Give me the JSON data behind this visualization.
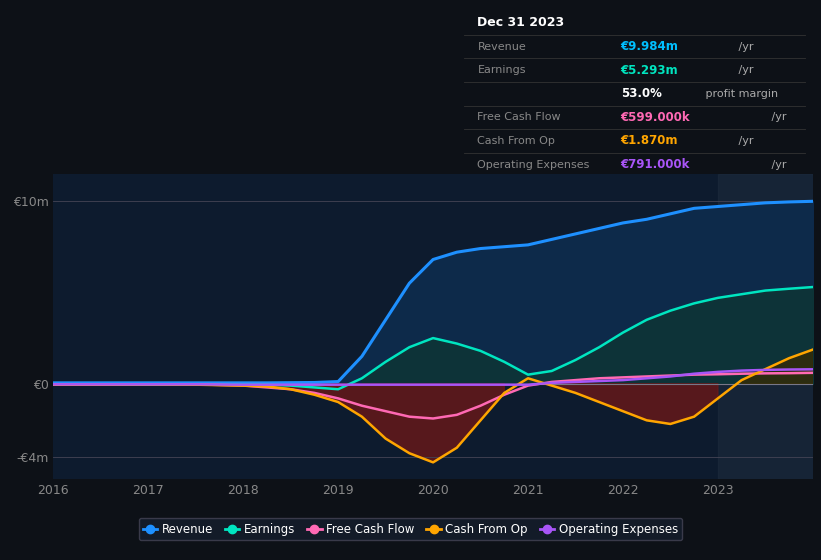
{
  "bg_color": "#0d1117",
  "plot_bg_color": "#0d1b2e",
  "years": [
    2016,
    2016.5,
    2017,
    2017.5,
    2018,
    2018.25,
    2018.5,
    2018.75,
    2019,
    2019.25,
    2019.5,
    2019.75,
    2020,
    2020.25,
    2020.5,
    2020.75,
    2021,
    2021.25,
    2021.5,
    2021.75,
    2022,
    2022.25,
    2022.5,
    2022.75,
    2023,
    2023.25,
    2023.5,
    2023.75,
    2024
  ],
  "revenue": [
    0.05,
    0.05,
    0.05,
    0.05,
    0.05,
    0.05,
    0.06,
    0.07,
    0.12,
    1.5,
    3.5,
    5.5,
    6.8,
    7.2,
    7.4,
    7.5,
    7.6,
    7.9,
    8.2,
    8.5,
    8.8,
    9.0,
    9.3,
    9.6,
    9.7,
    9.8,
    9.9,
    9.95,
    9.984
  ],
  "earnings": [
    -0.05,
    -0.05,
    -0.05,
    -0.03,
    -0.05,
    -0.05,
    -0.1,
    -0.2,
    -0.3,
    0.3,
    1.2,
    2.0,
    2.5,
    2.2,
    1.8,
    1.2,
    0.5,
    0.7,
    1.3,
    2.0,
    2.8,
    3.5,
    4.0,
    4.4,
    4.7,
    4.9,
    5.1,
    5.2,
    5.293
  ],
  "free_cash_flow": [
    -0.05,
    -0.05,
    -0.03,
    -0.03,
    -0.1,
    -0.2,
    -0.3,
    -0.5,
    -0.8,
    -1.2,
    -1.5,
    -1.8,
    -1.9,
    -1.7,
    -1.2,
    -0.6,
    -0.1,
    0.1,
    0.2,
    0.3,
    0.35,
    0.4,
    0.45,
    0.5,
    0.52,
    0.55,
    0.57,
    0.58,
    0.599
  ],
  "cash_from_op": [
    -0.03,
    -0.03,
    -0.03,
    -0.05,
    -0.1,
    -0.15,
    -0.3,
    -0.6,
    -1.0,
    -1.8,
    -3.0,
    -3.8,
    -4.3,
    -3.5,
    -2.0,
    -0.5,
    0.3,
    -0.1,
    -0.5,
    -1.0,
    -1.5,
    -2.0,
    -2.2,
    -1.8,
    -0.8,
    0.2,
    0.8,
    1.4,
    1.87
  ],
  "op_expenses": [
    -0.03,
    -0.03,
    -0.03,
    -0.03,
    -0.05,
    -0.05,
    -0.05,
    -0.05,
    -0.05,
    -0.05,
    -0.05,
    -0.05,
    -0.05,
    -0.05,
    -0.05,
    -0.05,
    -0.05,
    0.05,
    0.1,
    0.15,
    0.2,
    0.3,
    0.4,
    0.55,
    0.65,
    0.72,
    0.76,
    0.78,
    0.791
  ],
  "revenue_color": "#1e90ff",
  "earnings_color": "#00e5c0",
  "fcf_color": "#ff69b4",
  "cashop_color": "#ffa500",
  "opex_color": "#a855f7",
  "ylim_min": -5.2,
  "ylim_max": 11.5,
  "yticks": [
    -4,
    0,
    10
  ],
  "ytick_labels": [
    "-€4m",
    "€0",
    "€10m"
  ],
  "xticks": [
    2016,
    2017,
    2018,
    2019,
    2020,
    2021,
    2022,
    2023
  ],
  "legend": [
    {
      "label": "Revenue",
      "color": "#1e90ff"
    },
    {
      "label": "Earnings",
      "color": "#00e5c0"
    },
    {
      "label": "Free Cash Flow",
      "color": "#ff69b4"
    },
    {
      "label": "Cash From Op",
      "color": "#ffa500"
    },
    {
      "label": "Operating Expenses",
      "color": "#a855f7"
    }
  ],
  "info_rows": [
    {
      "label": "Dec 31 2023",
      "value": "",
      "value_color": "#ffffff",
      "suffix": "",
      "is_title": true
    },
    {
      "label": "Revenue",
      "value": "€9.984m",
      "value_color": "#00bfff",
      "suffix": " /yr",
      "is_title": false
    },
    {
      "label": "Earnings",
      "value": "€5.293m",
      "value_color": "#00e5c0",
      "suffix": " /yr",
      "is_title": false
    },
    {
      "label": "",
      "value": "53.0%",
      "value_color": "#ffffff",
      "suffix": " profit margin",
      "is_title": false
    },
    {
      "label": "Free Cash Flow",
      "value": "€599.000k",
      "value_color": "#ff69b4",
      "suffix": " /yr",
      "is_title": false
    },
    {
      "label": "Cash From Op",
      "value": "€1.870m",
      "value_color": "#ffa500",
      "suffix": " /yr",
      "is_title": false
    },
    {
      "label": "Operating Expenses",
      "value": "€791.000k",
      "value_color": "#a855f7",
      "suffix": " /yr",
      "is_title": false
    }
  ]
}
